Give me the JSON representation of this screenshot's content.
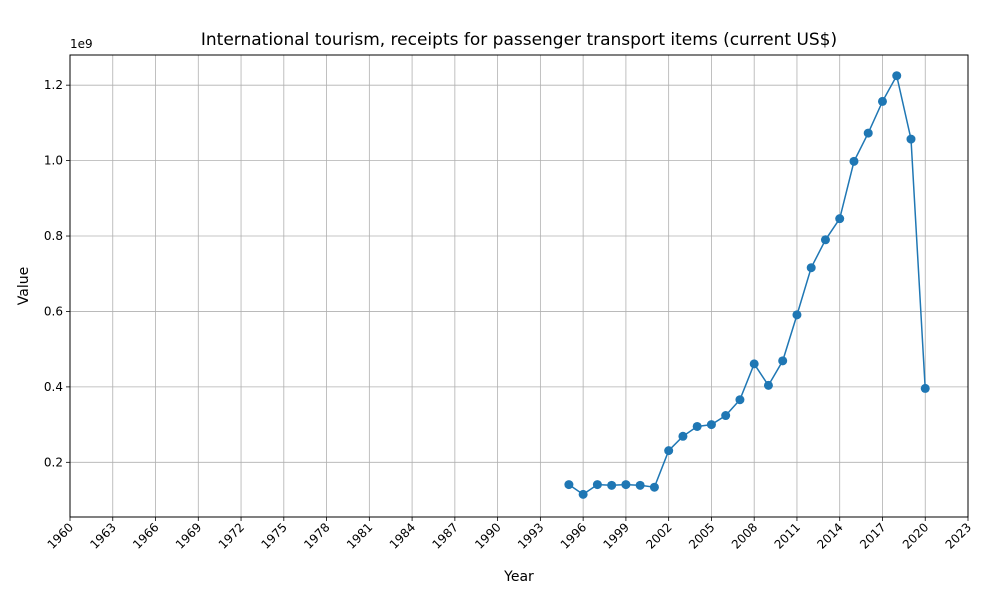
{
  "chart_data": {
    "type": "line",
    "title": "International tourism, receipts for passenger transport items (current US$)",
    "xlabel": "Year",
    "ylabel": "Value",
    "y_offset_label": "1e9",
    "x_ticks": [
      "1960",
      "1963",
      "1966",
      "1969",
      "1972",
      "1975",
      "1978",
      "1981",
      "1984",
      "1987",
      "1990",
      "1993",
      "1996",
      "1999",
      "2002",
      "2005",
      "2008",
      "2011",
      "2014",
      "2017",
      "2020",
      "2023"
    ],
    "y_ticks": [
      "0.2",
      "0.4",
      "0.6",
      "0.8",
      "1.0",
      "1.2"
    ],
    "xlim": [
      1960,
      2023
    ],
    "ylim": [
      0.055,
      1.28
    ],
    "grid": true,
    "color": "#1f77b4",
    "series": [
      {
        "x": [
          1995,
          1996,
          1997,
          1998,
          1999,
          2000,
          2001,
          2002,
          2003,
          2004,
          2005,
          2006,
          2007,
          2008,
          2009,
          2010,
          2011,
          2012,
          2013,
          2014,
          2015,
          2016,
          2017,
          2018,
          2019,
          2020
        ],
        "values": [
          0.141,
          0.115,
          0.141,
          0.139,
          0.141,
          0.139,
          0.134,
          0.231,
          0.269,
          0.295,
          0.3,
          0.324,
          0.366,
          0.461,
          0.404,
          0.469,
          0.591,
          0.716,
          0.79,
          0.846,
          0.998,
          1.073,
          1.157,
          1.225,
          1.057,
          0.396
        ]
      }
    ]
  }
}
